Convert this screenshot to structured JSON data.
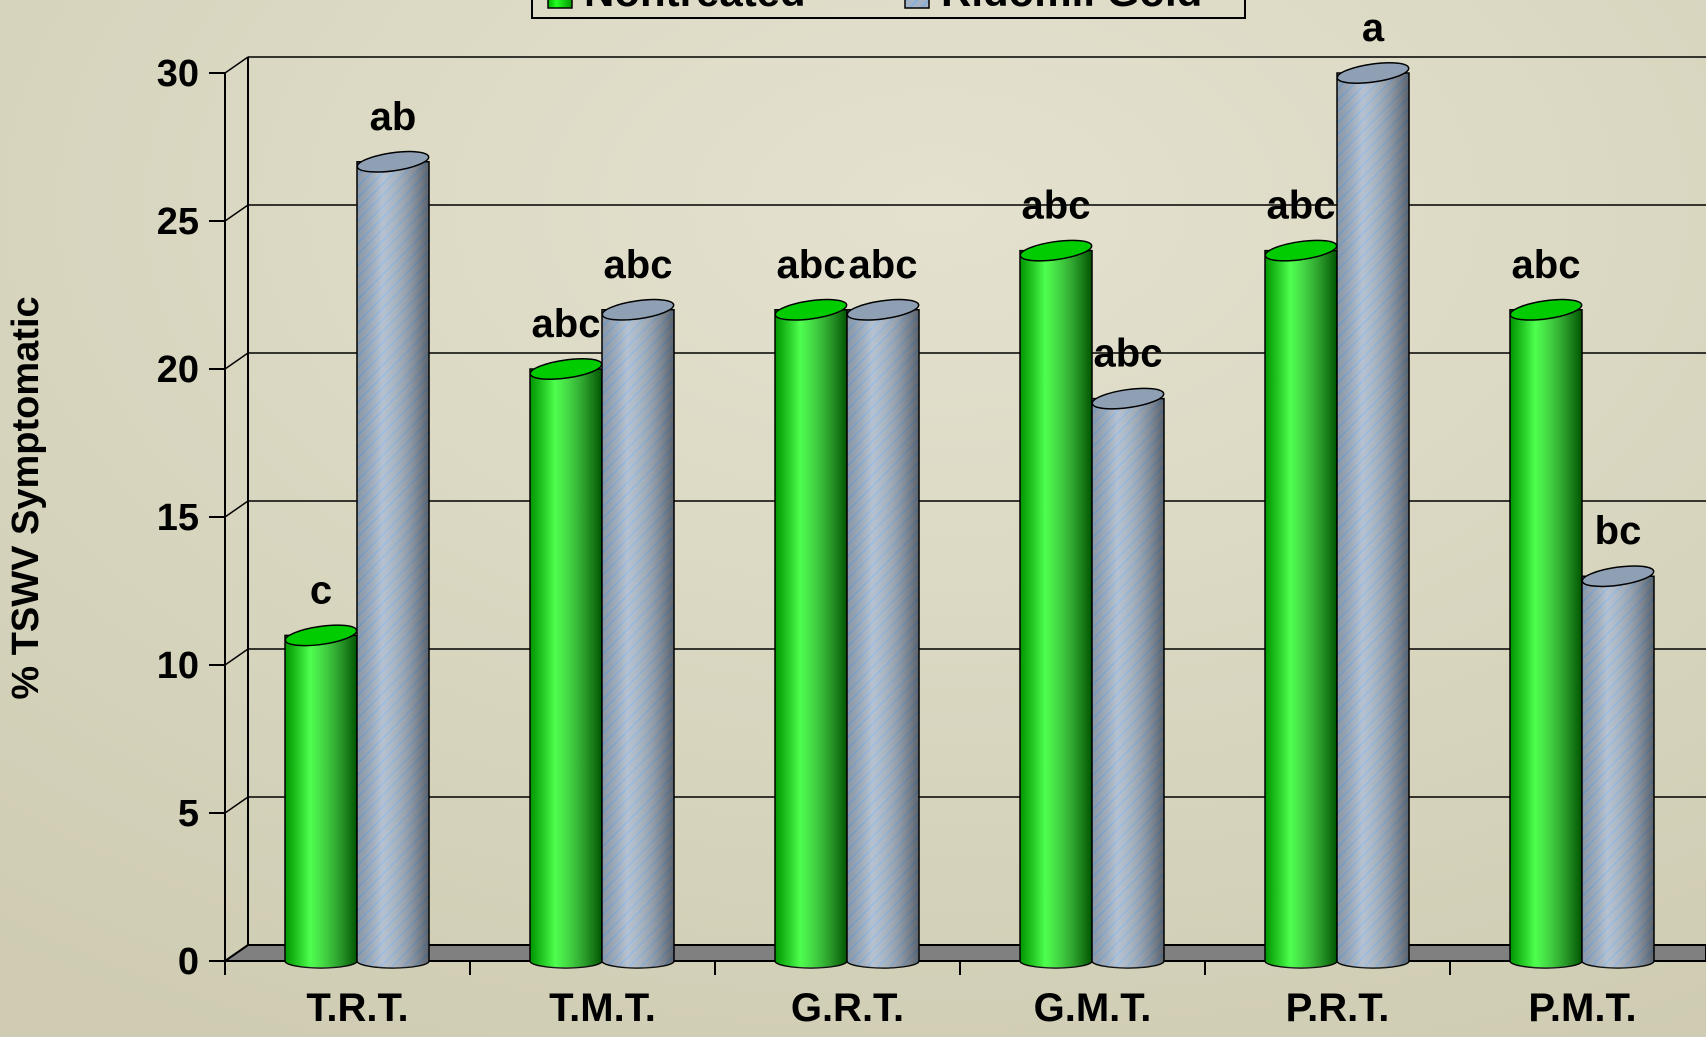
{
  "chart_data": {
    "type": "bar",
    "y_label": "% TSWV Symptomatic",
    "categories": [
      "T.R.T.",
      "T.M.T.",
      "G.R.T.",
      "G.M.T.",
      "P.R.T.",
      "P.M.T."
    ],
    "series": [
      {
        "name": "Nontreated",
        "color": "#00e600",
        "values": [
          11,
          20,
          22,
          24,
          24,
          22
        ],
        "letters": [
          "c",
          "abc",
          "abc",
          "abc",
          "abc",
          "abc"
        ]
      },
      {
        "name": "Ridomil Gold",
        "color": "#9bb0c8",
        "values": [
          27,
          22,
          22,
          19,
          30,
          13
        ],
        "letters": [
          "ab",
          "abc",
          "abc",
          "abc",
          "a",
          "bc"
        ]
      }
    ],
    "ylim": [
      0,
      30
    ],
    "yticks": [
      0,
      5,
      10,
      15,
      20,
      25,
      30
    ],
    "grid": true
  }
}
